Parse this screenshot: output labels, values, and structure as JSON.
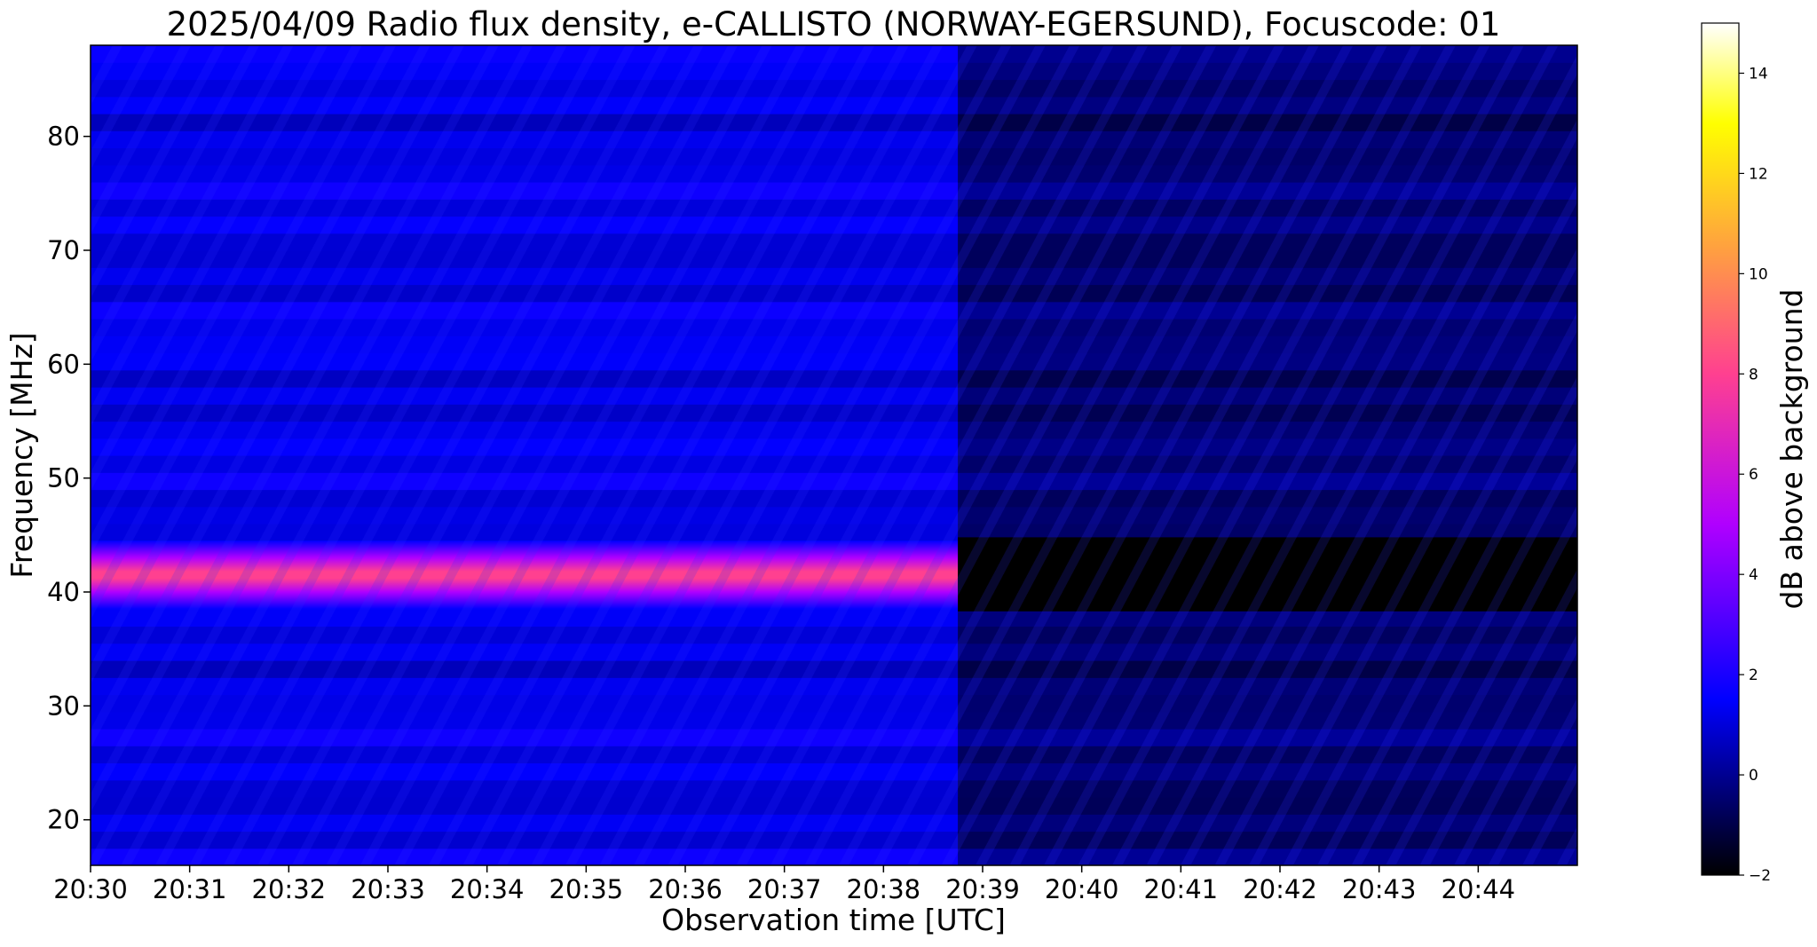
{
  "chart_data": {
    "type": "heatmap",
    "title": "2025/04/09  Radio flux density, e-CALLISTO (NORWAY-EGERSUND), Focuscode: 01",
    "xlabel": "Observation time [UTC]",
    "ylabel": "Frequency [MHz]",
    "x_ticks": [
      "20:30",
      "20:31",
      "20:32",
      "20:33",
      "20:34",
      "20:35",
      "20:36",
      "20:37",
      "20:38",
      "20:39",
      "20:40",
      "20:41",
      "20:42",
      "20:43",
      "20:44"
    ],
    "x_range_minutes": [
      0,
      15
    ],
    "y_ticks": [
      20,
      30,
      40,
      50,
      60,
      70,
      80
    ],
    "ylim": [
      16,
      88
    ],
    "colorbar": {
      "label": "dB above background",
      "range": [
        -2,
        15
      ],
      "ticks": [
        -2,
        0,
        2,
        4,
        6,
        8,
        10,
        12,
        14
      ],
      "colormap": [
        "#000000",
        "#0000ff",
        "#b000ff",
        "#ff4090",
        "#ffa040",
        "#ffff00",
        "#ffffff"
      ]
    },
    "features": [
      {
        "description": "strong emission band",
        "freq_mhz": [
          38.5,
          44.5
        ],
        "time_min": [
          0,
          8.75
        ],
        "peak_db": 8
      },
      {
        "description": "background drop",
        "time_min": [
          8.75,
          15
        ],
        "level_db": -1
      },
      {
        "description": "blanked band",
        "freq_mhz": [
          38.3,
          44.8
        ],
        "time_min": [
          8.75,
          15
        ],
        "level_db": -2
      }
    ]
  }
}
